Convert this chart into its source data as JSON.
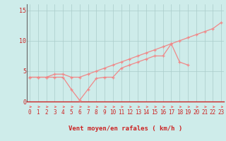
{
  "xlabel": "Vent moyen/en rafales ( km/h )",
  "bg_color": "#ceecea",
  "grid_color": "#aaccca",
  "line_color": "#f08888",
  "arrow_color": "#ee6666",
  "label_color": "#cc2222",
  "x_values": [
    0,
    1,
    2,
    3,
    4,
    5,
    6,
    7,
    8,
    9,
    10,
    11,
    12,
    13,
    14,
    15,
    16,
    17,
    18,
    19,
    20,
    21,
    22,
    23
  ],
  "line1_y": [
    4,
    4,
    4,
    4,
    4,
    2,
    0.2,
    2,
    3.8,
    4,
    4,
    5.5,
    6,
    6.5,
    7,
    7.5,
    7.5,
    9.5,
    6.5,
    6,
    null,
    null,
    null,
    null
  ],
  "line2_y": [
    4,
    4,
    4,
    4.5,
    4.5,
    4,
    4,
    4.5,
    5,
    5.5,
    6,
    6.5,
    7,
    7.5,
    8,
    8.5,
    9,
    9.5,
    10,
    10.5,
    11,
    11.5,
    12,
    13
  ],
  "ylim": [
    0,
    16
  ],
  "xlim": [
    -0.3,
    23.3
  ],
  "yticks": [
    0,
    5,
    10,
    15
  ],
  "xticks": [
    0,
    1,
    2,
    3,
    4,
    5,
    6,
    7,
    8,
    9,
    10,
    11,
    12,
    13,
    14,
    15,
    16,
    17,
    18,
    19,
    20,
    21,
    22,
    23
  ]
}
